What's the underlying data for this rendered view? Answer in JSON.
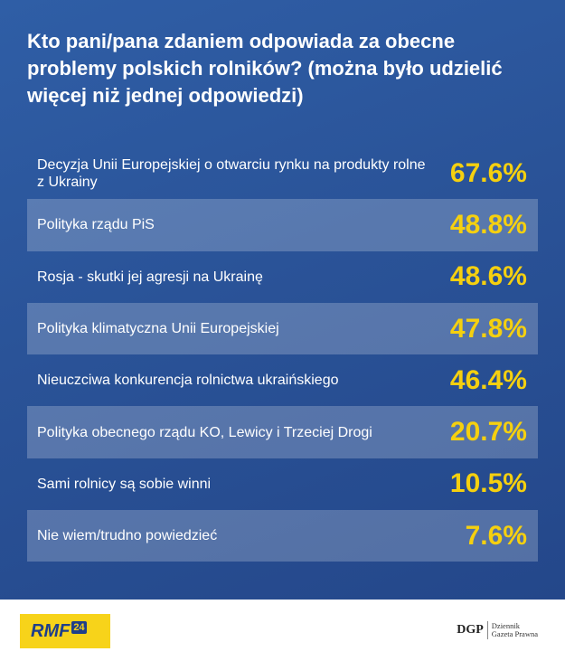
{
  "title": "Kto pani/pana zdaniem odpowiada za obecne problemy polskich rolników? (można było udzielić więcej niż jednej odpowiedzi)",
  "chart_data": {
    "type": "table",
    "title": "Kto pani/pana zdaniem odpowiada za obecne problemy polskich rolników? (można było udzielić więcej niż jednej odpowiedzi)",
    "rows": [
      {
        "label": "Decyzja Unii Europejskiej o otwarciu rynku na produkty rolne z Ukrainy",
        "value": "67.6%"
      },
      {
        "label": "Polityka rządu PiS",
        "value": "48.8%"
      },
      {
        "label": "Rosja - skutki jej agresji na Ukrainę",
        "value": "48.6%"
      },
      {
        "label": "Polityka klimatyczna Unii Europejskiej",
        "value": "47.8%"
      },
      {
        "label": "Nieuczciwa konkurencja rolnictwa ukraińskiego",
        "value": "46.4%"
      },
      {
        "label": "Polityka obecnego rządu KO, Lewicy i Trzeciej Drogi",
        "value": "20.7%"
      },
      {
        "label": "Sami rolnicy są sobie winni",
        "value": "10.5%"
      },
      {
        "label": "Nie wiem/trudno powiedzieć",
        "value": "7.6%"
      }
    ],
    "colors": {
      "background": "#2a5398",
      "value": "#f5d00f",
      "label": "#ffffff"
    }
  },
  "footer": {
    "rmf_logo_text": "RMF",
    "rmf_logo_number": "24",
    "dgp_mark": "DGP",
    "dgp_line1": "Dziennik",
    "dgp_line2": "Gazeta Prawna"
  }
}
